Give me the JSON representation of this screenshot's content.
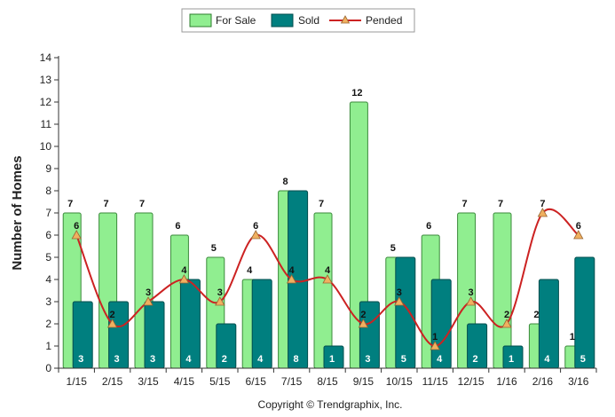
{
  "chart_data": {
    "type": "bar",
    "title": "",
    "ylabel": "Number of Homes",
    "xlabel": "",
    "ylim": [
      0,
      14
    ],
    "yticks": [
      0,
      1,
      2,
      3,
      4,
      5,
      6,
      7,
      8,
      9,
      10,
      11,
      12,
      13,
      14
    ],
    "grid": false,
    "legend_position": "top-center",
    "categories": [
      "1/15",
      "2/15",
      "3/15",
      "4/15",
      "5/15",
      "6/15",
      "7/15",
      "8/15",
      "9/15",
      "10/15",
      "11/15",
      "12/15",
      "1/16",
      "2/16",
      "3/16"
    ],
    "series": [
      {
        "name": "For Sale",
        "kind": "bar",
        "color": "#90ee90",
        "values": [
          7,
          7,
          7,
          6,
          5,
          4,
          8,
          7,
          12,
          5,
          6,
          7,
          7,
          2,
          1
        ]
      },
      {
        "name": "Sold",
        "kind": "bar",
        "color": "#007f7f",
        "values": [
          3,
          3,
          3,
          4,
          2,
          4,
          8,
          1,
          3,
          5,
          4,
          2,
          1,
          4,
          5
        ]
      },
      {
        "name": "Pended",
        "kind": "line",
        "color": "#cc2222",
        "marker_color": "#f0b060",
        "values": [
          6,
          2,
          3,
          4,
          3,
          6,
          4,
          4,
          2,
          3,
          1,
          3,
          2,
          7,
          6
        ]
      }
    ],
    "footer": "Copyright © Trendgraphix, Inc."
  }
}
